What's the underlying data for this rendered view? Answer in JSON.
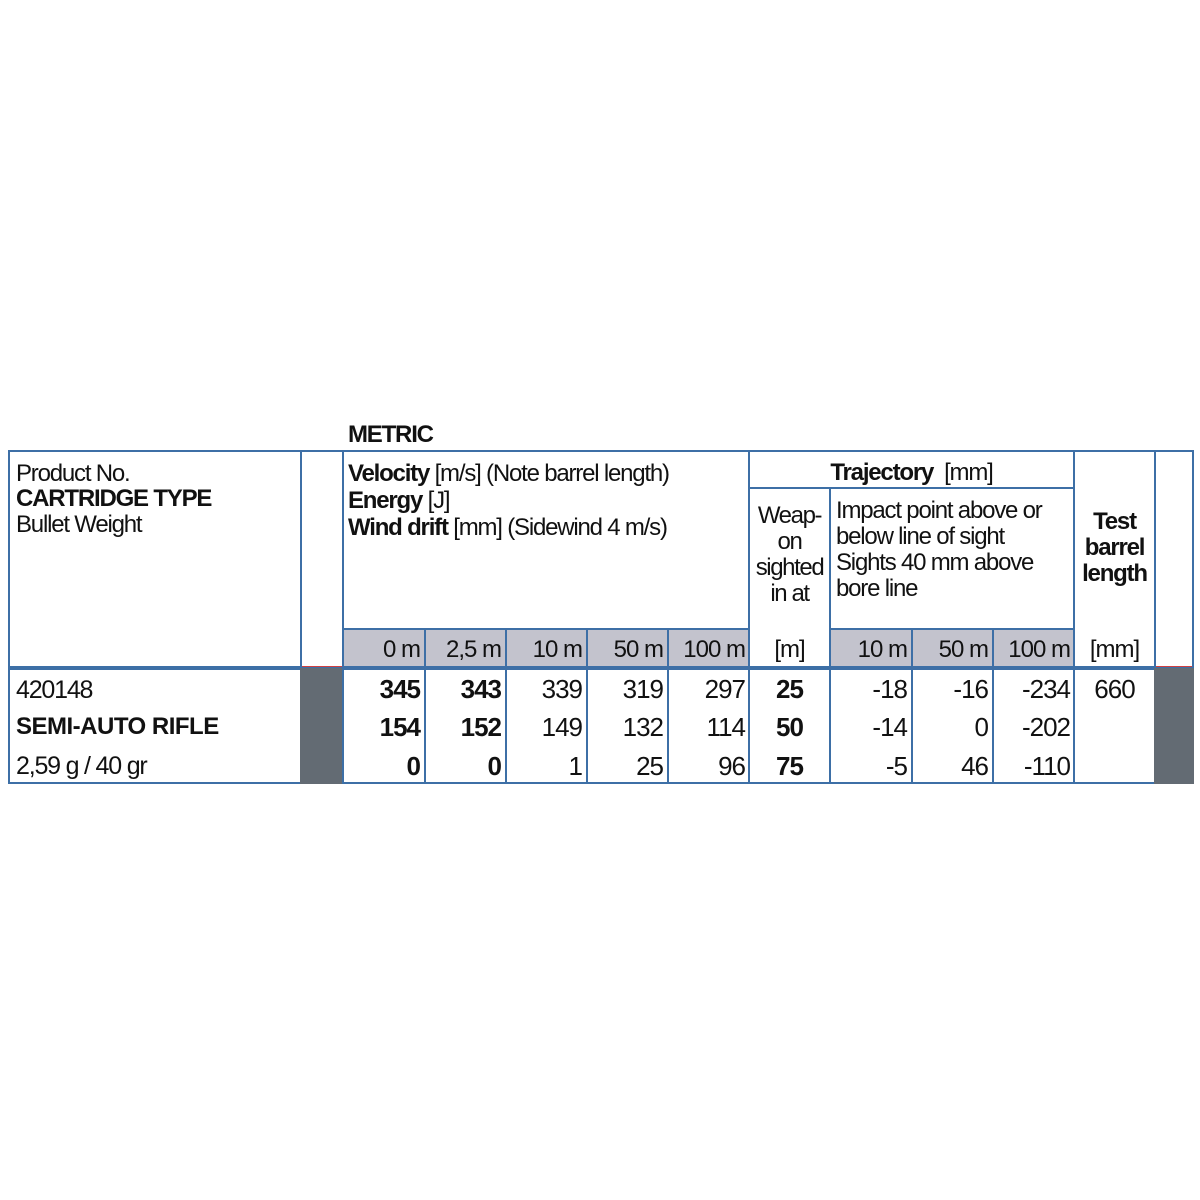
{
  "section_title": "METRIC",
  "left_header": {
    "line1": "Product No.",
    "line2": "CARTRIDGE TYPE",
    "line3": "Bullet Weight"
  },
  "ballistics_header": {
    "velocity": "Velocity",
    "velocity_unit": "[m/s] (Note barrel length)",
    "energy": "Energy",
    "energy_unit": "[J]",
    "wind": "Wind drift",
    "wind_unit": "[mm] (Sidewind 4 m/s)"
  },
  "trajectory_header": {
    "title": "Trajectory",
    "unit": "[mm]",
    "sighted": [
      "Weap-",
      "on",
      "sighted",
      "in at"
    ],
    "impact": [
      "Impact point above or",
      "below line of sight",
      "Sights 40 mm above",
      "bore line"
    ]
  },
  "barrel_header": [
    "Test",
    "barrel",
    "length"
  ],
  "distance_headers": [
    "0 m",
    "2,5 m",
    "10 m",
    "50 m",
    "100 m"
  ],
  "sighted_unit": "[m]",
  "trajectory_distances": [
    "10 m",
    "50 m",
    "100 m"
  ],
  "barrel_unit": "[mm]",
  "product": {
    "number": "420148",
    "type": "SEMI-AUTO RIFLE",
    "weight": "2,59 g / 40 gr",
    "barrel_length": "660"
  },
  "rows": [
    {
      "values": [
        "345",
        "343",
        "339",
        "319",
        "297"
      ],
      "sighted": "25",
      "trajectory": [
        "-18",
        "-16",
        "-234"
      ]
    },
    {
      "values": [
        "154",
        "152",
        "149",
        "132",
        "114"
      ],
      "sighted": "50",
      "trajectory": [
        "-14",
        "0",
        "-202"
      ]
    },
    {
      "values": [
        "0",
        "0",
        "1",
        "25",
        "96"
      ],
      "sighted": "75",
      "trajectory": [
        "-5",
        "46",
        "-110"
      ]
    }
  ],
  "colors": {
    "border": "#3d6fa6",
    "header_gray": "#c3c3cd",
    "dark_column": "#636b73"
  }
}
